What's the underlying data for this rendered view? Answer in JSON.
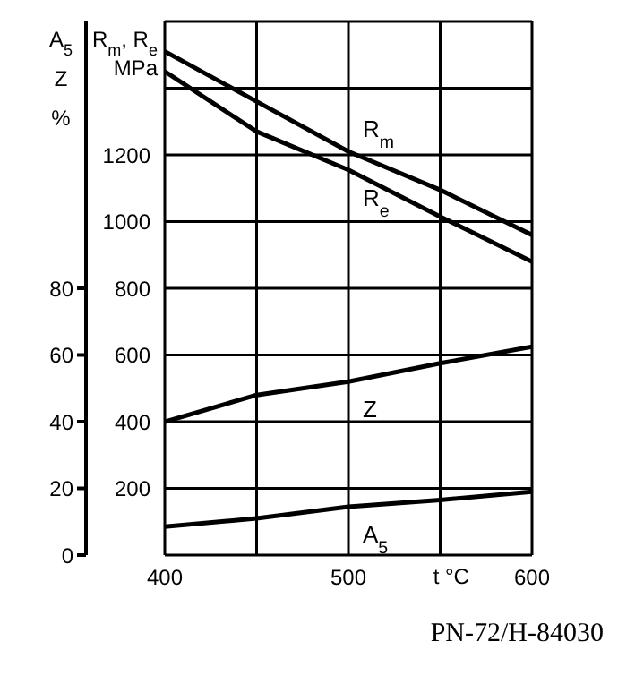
{
  "chart_data": {
    "type": "line",
    "xlabel": "t °C",
    "ylabel": "R$_{m}$, R$_{e}$ MPa",
    "y2label": "A$_{5}$ Z %",
    "x": [
      400,
      450,
      500,
      550,
      600
    ],
    "series": [
      {
        "name": "R$_{m}$",
        "color": "#000000",
        "values": [
          1510,
          1360,
          1210,
          1095,
          960
        ]
      },
      {
        "name": "R$_{e}$",
        "color": "#000000",
        "values": [
          1450,
          1270,
          1155,
          1015,
          880
        ]
      },
      {
        "name": "Z",
        "color": "#000000",
        "axis": "y2",
        "values": [
          40,
          48,
          52,
          57.5,
          62.5
        ]
      },
      {
        "name": "A$_{5}$",
        "color": "#000000",
        "axis": "y2",
        "values": [
          8.5,
          11,
          14.5,
          16.5,
          19
        ]
      }
    ],
    "xlim": [
      400,
      600
    ],
    "xticks": [
      400,
      {
        "value": 450,
        "label": null
      },
      500,
      {
        "value": 550,
        "label": null
      },
      600
    ],
    "ylim": [
      0,
      1600
    ],
    "yticks": [
      {
        "value": 0,
        "label": null
      },
      200,
      400,
      600,
      800,
      1000,
      1200,
      {
        "value": 1400,
        "label": null
      },
      {
        "value": 1600,
        "label": null
      }
    ],
    "y2lim": [
      0,
      160
    ],
    "y2ticks": [
      0,
      20,
      40,
      60,
      80
    ],
    "grid": true,
    "annotations": [
      "PN-72/H-84030"
    ]
  }
}
